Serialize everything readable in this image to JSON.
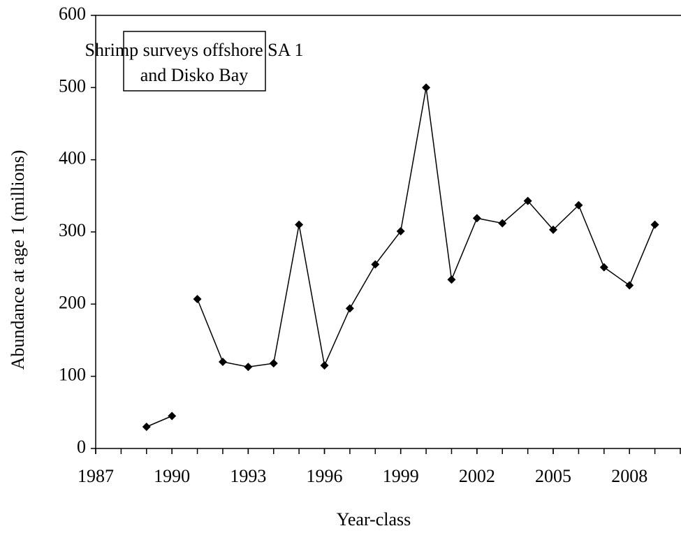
{
  "chart_data": {
    "type": "line",
    "x_label": "Year-class",
    "y_label": "Abundance at age 1 (millions)",
    "annotation": [
      "Shrimp surveys offshore SA 1",
      "and Disko Bay"
    ],
    "series": [
      {
        "color": "#000000",
        "x": [
          1989,
          1990
        ],
        "values": [
          30,
          45
        ]
      },
      {
        "color": "#000000",
        "x": [
          1991,
          1992,
          1993,
          1994,
          1995,
          1996,
          1997,
          1998,
          1999,
          2000,
          2001,
          2002,
          2003,
          2004,
          2005,
          2006,
          2007,
          2008,
          2009
        ],
        "values": [
          207,
          120,
          113,
          118,
          310,
          115,
          194,
          255,
          301,
          500,
          234,
          319,
          312,
          343,
          303,
          337,
          251,
          226,
          310
        ]
      }
    ],
    "xlim": [
      1987,
      2010
    ],
    "xticks": [
      1987,
      1990,
      1993,
      1996,
      1999,
      2002,
      2005,
      2008
    ],
    "ylim": [
      0,
      600
    ],
    "yticks": [
      0,
      100,
      200,
      300,
      400,
      500,
      600
    ]
  }
}
